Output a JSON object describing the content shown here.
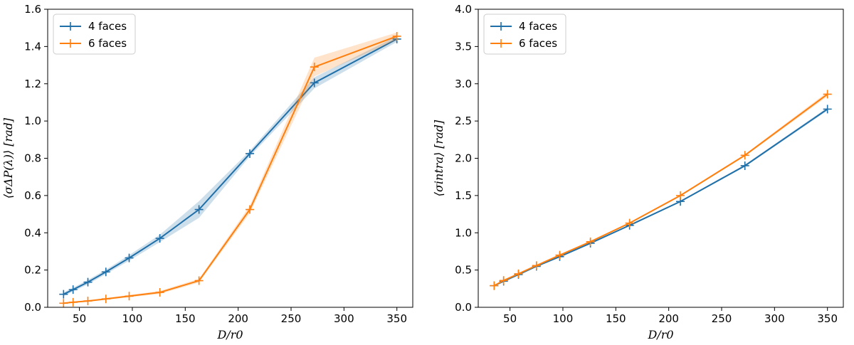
{
  "chart_data": [
    {
      "type": "line",
      "title": "",
      "xlabel": "D/r0",
      "ylabel": "⟨σΔP(λ)⟩ [rad]",
      "xlim": [
        20,
        365
      ],
      "ylim": [
        0,
        1.6
      ],
      "xticks": [
        50,
        100,
        150,
        200,
        250,
        300,
        350
      ],
      "xtick_labels": [
        "50",
        "100",
        "150",
        "200",
        "250",
        "300",
        "350"
      ],
      "yticks": [
        0,
        0.2,
        0.4,
        0.6,
        0.8,
        1.0,
        1.2,
        1.4,
        1.6
      ],
      "ytick_labels": [
        "0.0",
        "0.2",
        "0.4",
        "0.6",
        "0.8",
        "1.0",
        "1.2",
        "1.4",
        "1.6"
      ],
      "legend_position": "top-left",
      "grid": false,
      "series": [
        {
          "name": "4 faces",
          "color": "#1f6fa8",
          "x": [
            35,
            44,
            58,
            75,
            97,
            126,
            163,
            211,
            272,
            350
          ],
          "y": [
            0.07,
            0.095,
            0.135,
            0.19,
            0.265,
            0.37,
            0.525,
            0.825,
            1.205,
            1.44
          ],
          "band": [
            0.01,
            0.01,
            0.012,
            0.012,
            0.015,
            0.02,
            0.045,
            0.015,
            0.03,
            0.015
          ]
        },
        {
          "name": "6 faces",
          "color": "#ff7f0e",
          "x": [
            35,
            44,
            58,
            75,
            97,
            126,
            163,
            211,
            272,
            350
          ],
          "y": [
            0.022,
            0.027,
            0.034,
            0.045,
            0.06,
            0.08,
            0.143,
            0.525,
            1.29,
            1.455
          ],
          "band": [
            0.003,
            0.003,
            0.004,
            0.005,
            0.006,
            0.008,
            0.01,
            0.02,
            0.05,
            0.02
          ]
        }
      ]
    },
    {
      "type": "line",
      "title": "",
      "xlabel": "D/r0",
      "ylabel": "⟨σintra⟩ [rad]",
      "xlim": [
        20,
        365
      ],
      "ylim": [
        0,
        4.0
      ],
      "xticks": [
        50,
        100,
        150,
        200,
        250,
        300,
        350
      ],
      "xtick_labels": [
        "50",
        "100",
        "150",
        "200",
        "250",
        "300",
        "350"
      ],
      "yticks": [
        0,
        0.5,
        1.0,
        1.5,
        2.0,
        2.5,
        3.0,
        3.5,
        4.0
      ],
      "ytick_labels": [
        "0.0",
        "0.5",
        "1.0",
        "1.5",
        "2.0",
        "2.5",
        "3.0",
        "3.5",
        "4.0"
      ],
      "legend_position": "top-left",
      "grid": false,
      "series": [
        {
          "name": "4 faces",
          "color": "#1f6fa8",
          "x": [
            35,
            44,
            58,
            75,
            97,
            126,
            163,
            211,
            272,
            350
          ],
          "y": [
            0.29,
            0.35,
            0.44,
            0.55,
            0.68,
            0.86,
            1.1,
            1.42,
            1.9,
            2.66
          ],
          "band": [
            0.005,
            0.005,
            0.005,
            0.005,
            0.005,
            0.008,
            0.01,
            0.01,
            0.015,
            0.02
          ]
        },
        {
          "name": "6 faces",
          "color": "#ff7f0e",
          "x": [
            35,
            44,
            58,
            75,
            97,
            126,
            163,
            211,
            272,
            350
          ],
          "y": [
            0.29,
            0.36,
            0.45,
            0.56,
            0.7,
            0.88,
            1.13,
            1.5,
            2.04,
            2.86
          ],
          "band": [
            0.005,
            0.005,
            0.005,
            0.005,
            0.006,
            0.008,
            0.01,
            0.012,
            0.015,
            0.03
          ]
        }
      ]
    }
  ]
}
